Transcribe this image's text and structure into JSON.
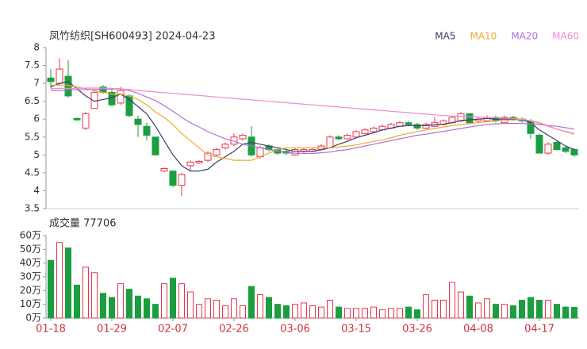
{
  "chart_data": {
    "type": "candlestick",
    "title": "凤竹纺织[SH600493] 2024-04-23",
    "volume_title": "成交量 77706",
    "up_color": "#e8364a",
    "down_color": "#1a9e3f",
    "categories": [
      "01-18",
      null,
      null,
      null,
      null,
      null,
      null,
      "01-29",
      null,
      null,
      null,
      null,
      null,
      null,
      "02-07",
      null,
      null,
      null,
      null,
      null,
      null,
      "02-26",
      null,
      null,
      null,
      null,
      null,
      null,
      "03-06",
      null,
      null,
      null,
      null,
      null,
      null,
      "03-15",
      null,
      null,
      null,
      null,
      null,
      null,
      "03-26",
      null,
      null,
      null,
      null,
      null,
      null,
      "04-08",
      null,
      null,
      null,
      null,
      null,
      null,
      "04-17",
      null,
      null,
      null,
      null
    ],
    "open": [
      7.15,
      7.0,
      7.2,
      6.02,
      5.75,
      6.3,
      6.9,
      6.75,
      6.45,
      6.65,
      6.0,
      5.8,
      5.5,
      4.55,
      4.55,
      4.15,
      4.7,
      4.78,
      4.85,
      5.0,
      5.2,
      5.3,
      5.45,
      5.5,
      4.95,
      5.25,
      5.15,
      5.1,
      5.0,
      5.1,
      5.1,
      5.15,
      5.2,
      5.5,
      5.45,
      5.5,
      5.6,
      5.65,
      5.7,
      5.75,
      5.8,
      5.9,
      5.85,
      5.75,
      5.8,
      5.85,
      5.9,
      5.95,
      6.15,
      5.95,
      5.95,
      6.05,
      5.9,
      6.05,
      6.0,
      5.95,
      5.55,
      5.05,
      5.35,
      5.2,
      5.15
    ],
    "high": [
      7.4,
      7.7,
      7.65,
      6.05,
      6.2,
      6.8,
      6.95,
      6.85,
      6.9,
      6.7,
      6.1,
      5.9,
      5.5,
      4.65,
      4.55,
      4.5,
      4.85,
      4.85,
      5.1,
      5.2,
      5.35,
      5.6,
      5.6,
      5.8,
      5.25,
      5.3,
      5.2,
      5.15,
      5.2,
      5.2,
      5.2,
      5.3,
      5.55,
      5.55,
      5.6,
      5.7,
      5.75,
      5.8,
      5.85,
      5.9,
      5.95,
      5.95,
      5.9,
      5.9,
      6.05,
      6.0,
      6.1,
      6.2,
      6.15,
      6.05,
      6.1,
      6.1,
      6.1,
      6.1,
      6.05,
      6.0,
      5.6,
      5.35,
      5.4,
      5.25,
      5.18
    ],
    "low": [
      6.85,
      6.95,
      6.6,
      5.95,
      5.7,
      6.3,
      6.7,
      6.35,
      6.4,
      6.05,
      5.5,
      5.4,
      5.0,
      4.52,
      4.1,
      3.85,
      4.55,
      4.75,
      4.8,
      4.95,
      5.15,
      5.25,
      5.4,
      4.95,
      4.9,
      5.1,
      5.0,
      5.0,
      4.98,
      5.05,
      5.08,
      5.12,
      5.18,
      5.4,
      5.42,
      5.48,
      5.58,
      5.62,
      5.68,
      5.72,
      5.78,
      5.8,
      5.7,
      5.72,
      5.78,
      5.82,
      5.88,
      5.92,
      5.85,
      5.9,
      5.92,
      5.9,
      5.88,
      5.95,
      5.9,
      5.45,
      5.05,
      5.0,
      5.12,
      5.05,
      4.95
    ],
    "close": [
      7.05,
      7.4,
      6.65,
      5.98,
      6.15,
      6.75,
      6.75,
      6.4,
      6.8,
      6.1,
      5.85,
      5.55,
      5.0,
      4.62,
      4.15,
      4.45,
      4.8,
      4.82,
      5.05,
      5.15,
      5.3,
      5.5,
      5.55,
      5.0,
      5.2,
      5.15,
      5.05,
      5.05,
      5.15,
      5.15,
      5.15,
      5.25,
      5.5,
      5.45,
      5.55,
      5.65,
      5.7,
      5.75,
      5.8,
      5.85,
      5.9,
      5.85,
      5.75,
      5.85,
      5.9,
      5.95,
      6.05,
      6.15,
      5.9,
      6.0,
      6.05,
      5.95,
      6.05,
      6.0,
      5.95,
      5.6,
      5.05,
      5.3,
      5.15,
      5.1,
      5.0
    ],
    "volume": [
      42,
      55,
      51,
      24,
      37,
      33,
      18,
      15,
      25,
      21,
      16,
      14,
      10,
      25,
      29,
      25,
      19,
      10,
      14,
      13,
      9,
      14,
      9,
      23,
      17,
      15,
      10,
      9,
      10,
      11,
      9,
      8,
      13,
      8,
      7,
      7,
      7,
      8,
      6,
      7,
      7,
      8,
      6,
      17,
      13,
      13,
      26,
      19,
      16,
      11,
      14,
      10,
      10,
      9,
      13,
      15,
      13,
      13,
      10,
      8,
      7.77
    ],
    "series": [
      {
        "name": "MA5",
        "color": "#3b3b6e",
        "values": [
          6.9,
          7.0,
          7.05,
          6.85,
          6.65,
          6.5,
          6.55,
          6.6,
          6.7,
          6.55,
          6.35,
          6.15,
          5.8,
          5.4,
          5.0,
          4.7,
          4.55,
          4.55,
          4.6,
          4.8,
          4.95,
          5.1,
          5.3,
          5.35,
          5.3,
          5.25,
          5.2,
          5.15,
          5.1,
          5.1,
          5.1,
          5.15,
          5.2,
          5.3,
          5.38,
          5.48,
          5.55,
          5.62,
          5.7,
          5.75,
          5.8,
          5.82,
          5.82,
          5.82,
          5.84,
          5.86,
          5.9,
          5.96,
          5.98,
          6.0,
          6.02,
          6.0,
          6.0,
          6.0,
          5.98,
          5.9,
          5.7,
          5.55,
          5.4,
          5.25,
          5.15
        ]
      },
      {
        "name": "MA10",
        "color": "#f0a830",
        "values": [
          6.95,
          6.95,
          6.95,
          6.9,
          6.85,
          6.8,
          6.75,
          6.7,
          6.7,
          6.65,
          6.55,
          6.4,
          6.2,
          6.05,
          5.85,
          5.6,
          5.4,
          5.2,
          5.0,
          4.95,
          4.9,
          4.85,
          4.85,
          4.85,
          4.95,
          5.05,
          5.15,
          5.2,
          5.2,
          5.2,
          5.2,
          5.2,
          5.2,
          5.22,
          5.25,
          5.28,
          5.33,
          5.38,
          5.42,
          5.48,
          5.55,
          5.6,
          5.65,
          5.7,
          5.74,
          5.78,
          5.82,
          5.85,
          5.88,
          5.9,
          5.93,
          5.95,
          5.97,
          5.98,
          5.98,
          5.96,
          5.9,
          5.82,
          5.72,
          5.65,
          5.58
        ]
      },
      {
        "name": "MA20",
        "color": "#b070d8",
        "values": [
          6.8,
          6.8,
          6.82,
          6.82,
          6.82,
          6.83,
          6.84,
          6.84,
          6.85,
          6.8,
          6.72,
          6.62,
          6.52,
          6.38,
          6.22,
          6.05,
          5.9,
          5.78,
          5.65,
          5.55,
          5.45,
          5.38,
          5.3,
          5.25,
          5.2,
          5.15,
          5.1,
          5.07,
          5.05,
          5.04,
          5.04,
          5.06,
          5.08,
          5.12,
          5.15,
          5.2,
          5.25,
          5.3,
          5.35,
          5.4,
          5.45,
          5.5,
          5.55,
          5.58,
          5.62,
          5.66,
          5.7,
          5.74,
          5.78,
          5.82,
          5.85,
          5.87,
          5.88,
          5.88,
          5.88,
          5.87,
          5.85,
          5.82,
          5.8,
          5.76,
          5.72
        ]
      },
      {
        "name": "MA60",
        "color": "#f08ad0",
        "values": [
          6.85,
          6.86,
          6.86,
          6.86,
          6.87,
          6.87,
          6.87,
          6.86,
          6.85,
          6.83,
          6.8,
          6.78,
          6.76,
          6.74,
          6.72,
          6.7,
          6.68,
          6.66,
          6.64,
          6.62,
          6.6,
          6.58,
          6.56,
          6.54,
          6.52,
          6.5,
          6.48,
          6.46,
          6.44,
          6.42,
          6.4,
          6.38,
          6.36,
          6.34,
          6.32,
          6.3,
          6.28,
          6.26,
          6.24,
          6.22,
          6.2,
          6.18,
          6.16,
          6.14,
          6.12,
          6.1,
          6.09,
          6.08,
          6.07,
          6.06,
          6.05,
          6.04,
          6.03,
          6.02,
          6.0,
          5.95,
          5.88,
          5.8,
          5.72,
          5.66,
          5.6
        ]
      }
    ],
    "legend": "top-right",
    "ylim": [
      3.5,
      8
    ],
    "yticks": [
      3.5,
      4,
      4.5,
      5,
      5.5,
      6,
      6.5,
      7,
      7.5,
      8
    ],
    "volume_ylim": [
      0,
      60
    ],
    "volume_yticks": [
      {
        "value": 0,
        "label": "0万"
      },
      {
        "value": 10,
        "label": "10万"
      },
      {
        "value": 20,
        "label": "20万"
      },
      {
        "value": 30,
        "label": "30万"
      },
      {
        "value": 40,
        "label": "40万"
      },
      {
        "value": 50,
        "label": "50万"
      },
      {
        "value": 60,
        "label": "60万"
      }
    ]
  }
}
